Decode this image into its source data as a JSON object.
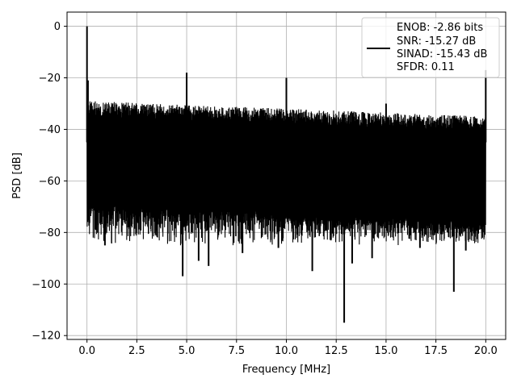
{
  "chart_data": {
    "type": "line",
    "xlabel": "Frequency [MHz]",
    "ylabel": "PSD [dB]",
    "xlim": [
      -1.0,
      21.0
    ],
    "ylim": [
      -121.5,
      5.5
    ],
    "xticks": [
      0.0,
      2.5,
      5.0,
      7.5,
      10.0,
      12.5,
      15.0,
      17.5,
      20.0
    ],
    "xtick_labels": [
      "0.0",
      "2.5",
      "5.0",
      "7.5",
      "10.0",
      "12.5",
      "15.0",
      "17.5",
      "20.0"
    ],
    "yticks": [
      0,
      -20,
      -40,
      -60,
      -80,
      -100,
      -120
    ],
    "ytick_labels": [
      "0",
      "−20",
      "−40",
      "−60",
      "−80",
      "−100",
      "−120"
    ],
    "grid": true,
    "legend_position": "top-right",
    "legend_lines": [
      "ENOB: -2.86 bits",
      "SNR: -15.27 dB",
      "SINAD: -15.43 dB",
      "SFDR: 0.11"
    ],
    "series": [
      {
        "color": "#000000",
        "noise_band": {
          "x_range": [
            0.0,
            20.0
          ],
          "upper_envelope": [
            -29,
            -35
          ],
          "lower_envelope": [
            -68,
            -76
          ],
          "typical_min": -82
        },
        "spikes": [
          {
            "x": 0.0,
            "y": 0
          },
          {
            "x": 0.05,
            "y": -21
          },
          {
            "x": 5.0,
            "y": -18
          },
          {
            "x": 10.0,
            "y": -20
          },
          {
            "x": 15.0,
            "y": -30
          },
          {
            "x": 20.0,
            "y": -17
          }
        ],
        "dips": [
          {
            "x": 0.45,
            "y": -79
          },
          {
            "x": 0.9,
            "y": -85
          },
          {
            "x": 4.8,
            "y": -97
          },
          {
            "x": 5.6,
            "y": -91
          },
          {
            "x": 6.1,
            "y": -93
          },
          {
            "x": 7.8,
            "y": -88
          },
          {
            "x": 9.6,
            "y": -86
          },
          {
            "x": 11.3,
            "y": -95
          },
          {
            "x": 12.9,
            "y": -115
          },
          {
            "x": 13.3,
            "y": -92
          },
          {
            "x": 14.3,
            "y": -90
          },
          {
            "x": 16.7,
            "y": -86
          },
          {
            "x": 18.4,
            "y": -103
          },
          {
            "x": 19.0,
            "y": -87
          }
        ]
      }
    ]
  }
}
